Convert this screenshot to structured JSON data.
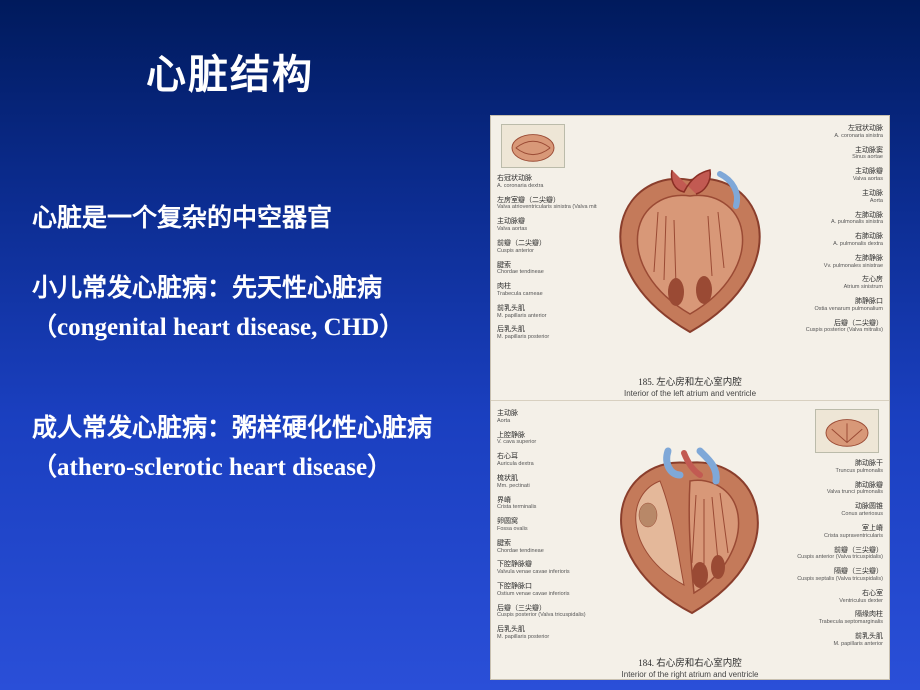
{
  "title": "心脏结构",
  "paragraphs": {
    "p1": "心脏是一个复杂的中空器官",
    "p2": "小儿常发心脏病：先天性心脏病（congenital heart disease, CHD）",
    "p3": "成人常发心脏病：粥样硬化性心脏病（athero-sclerotic heart disease）"
  },
  "styling": {
    "background_gradient_top": "#001a5c",
    "background_gradient_mid": "#1a3fbf",
    "background_gradient_bottom": "#2a4fd8",
    "text_color": "#ffffff",
    "title_fontsize_pt": 30,
    "body_fontsize_pt": 19,
    "font_family": "SimSun",
    "diagram_bg": "#f4f0e8",
    "heart_muscle_color": "#c47a5a",
    "heart_inner_color": "#d89878",
    "heart_dark_color": "#9a4a34",
    "vessel_blue": "#7fa8d8",
    "vessel_red": "#c25a52"
  },
  "diagrams": {
    "top": {
      "ref_no": "185.",
      "title_cn": "左心房和左心室内腔",
      "title_en": "Interior of the left atrium and ventricle",
      "inset_side": "left",
      "labels_left": [
        {
          "cn": "右冠状动脉",
          "la": "A. coronaria dextra"
        },
        {
          "cn": "左房室瓣（二尖瓣）",
          "la": "Valva atrioventricularis sinistra (Valva mitralis)"
        },
        {
          "cn": "主动脉瓣",
          "la": "Valva aortas"
        },
        {
          "cn": "前瓣（二尖瓣）",
          "la": "Cuspis anterior"
        },
        {
          "cn": "腱索",
          "la": "Chordae tendineae"
        },
        {
          "cn": "肉柱",
          "la": "Trabecula carneae"
        },
        {
          "cn": "前乳头肌",
          "la": "M. papillaris anterior"
        },
        {
          "cn": "后乳头肌",
          "la": "M. papillaris posterior"
        }
      ],
      "labels_right": [
        {
          "cn": "左冠状动脉",
          "la": "A. coronaria sinistra"
        },
        {
          "cn": "主动脉窦",
          "la": "Sinus aortae"
        },
        {
          "cn": "主动脉瓣",
          "la": "Valva aortas"
        },
        {
          "cn": "主动脉",
          "la": "Aorta"
        },
        {
          "cn": "左肺动脉",
          "la": "A. pulmonalis sinistra"
        },
        {
          "cn": "右肺动脉",
          "la": "A. pulmonalis dextra"
        },
        {
          "cn": "左肺静脉",
          "la": "Vv. pulmonales sinistrae"
        },
        {
          "cn": "左心房",
          "la": "Atrium sinistrum"
        },
        {
          "cn": "肺静脉口",
          "la": "Ostia venarum pulmonalium"
        },
        {
          "cn": "后瓣（二尖瓣）",
          "la": "Cuspis posterior (Valva mitralis)"
        }
      ]
    },
    "bottom": {
      "ref_no": "184.",
      "title_cn": "右心房和右心室内腔",
      "title_en": "Interior of the right atrium and ventricle",
      "inset_side": "right",
      "inset_label": {
        "cn": "右房室瓣（三尖瓣）",
        "la": "Valva atrioventricularis dextra (Valva tricuspidalis)"
      },
      "labels_left": [
        {
          "cn": "主动脉",
          "la": "Aorta"
        },
        {
          "cn": "上腔静脉",
          "la": "V. cava superior"
        },
        {
          "cn": "右心耳",
          "la": "Auricula dextra"
        },
        {
          "cn": "梳状肌",
          "la": "Mm. pectinati"
        },
        {
          "cn": "界嵴",
          "la": "Crista terminalis"
        },
        {
          "cn": "卵圆窝",
          "la": "Fossa ovalis"
        },
        {
          "cn": "腱索",
          "la": "Chordae tendineae"
        },
        {
          "cn": "下腔静脉瓣",
          "la": "Valvula venae cavae inferioris"
        },
        {
          "cn": "下腔静脉口",
          "la": "Ostium venae cavae inferioris"
        },
        {
          "cn": "后瓣（三尖瓣）",
          "la": "Cuspis posterior (Valva tricuspidalis)"
        },
        {
          "cn": "后乳头肌",
          "la": "M. papillaris posterior"
        }
      ],
      "labels_right": [
        {
          "cn": "肺动脉干",
          "la": "Truncus pulmonalis"
        },
        {
          "cn": "肺动脉瓣",
          "la": "Valva trunci pulmonalis"
        },
        {
          "cn": "动脉圆锥",
          "la": "Conus arteriosus"
        },
        {
          "cn": "室上嵴",
          "la": "Crista supraventricularis"
        },
        {
          "cn": "前瓣（三尖瓣）",
          "la": "Cuspis anterior (Valva tricuspidalis)"
        },
        {
          "cn": "隔瓣（三尖瓣）",
          "la": "Cuspis septalis (Valva tricuspidalis)"
        },
        {
          "cn": "右心室",
          "la": "Ventriculus dexter"
        },
        {
          "cn": "隔缘肉柱",
          "la": "Trabecula septomarginalis"
        },
        {
          "cn": "前乳头肌",
          "la": "M. papillaris anterior"
        }
      ]
    }
  }
}
